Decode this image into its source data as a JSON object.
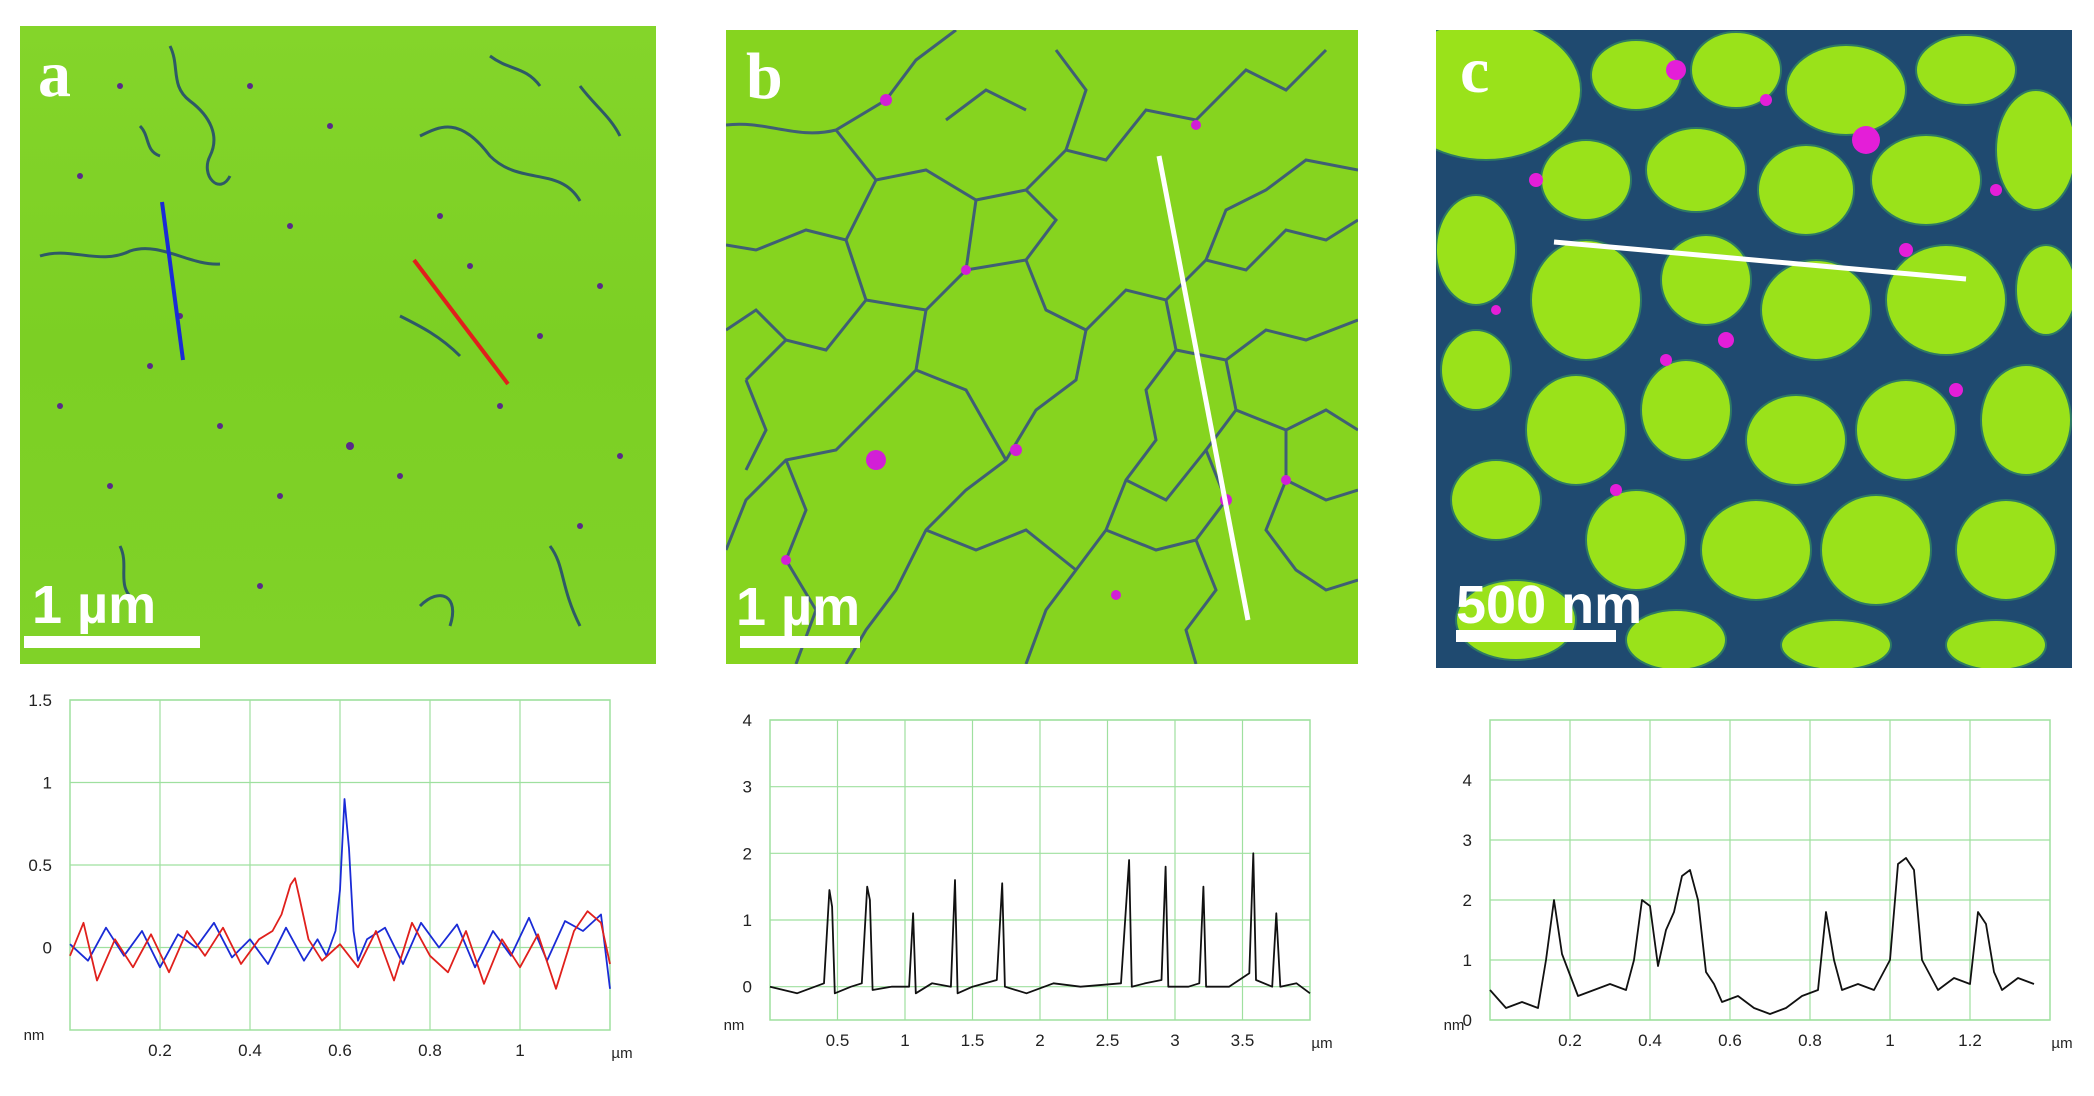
{
  "figure": {
    "panels": [
      {
        "letter": "a",
        "scale_label": "1 µm",
        "image_colors": {
          "base": "#7fd126",
          "fiber": "#2e5a66",
          "aggregate": "#b02bd0"
        },
        "line_colors": [
          "#1a2bd6",
          "#e0201c"
        ]
      },
      {
        "letter": "b",
        "scale_label": "1 µm",
        "image_colors": {
          "base": "#86d41f",
          "fiber": "#3f5f74",
          "aggregate": "#d21fd6"
        },
        "line_colors": [
          "#ffffff"
        ]
      },
      {
        "letter": "c",
        "scale_label": "500 nm",
        "image_colors": {
          "base": "#9ae21a",
          "fiber": "#1f4a70",
          "aggregate": "#e41ed8"
        },
        "line_colors": [
          "#ffffff"
        ]
      }
    ]
  },
  "chart_data": [
    {
      "type": "line",
      "panel": "a",
      "ylabel": "nm",
      "xlabel": "µm",
      "xlim": [
        0,
        1.2
      ],
      "ylim": [
        -0.5,
        1.5
      ],
      "xticks": [
        "0.2",
        "0.4",
        "0.6",
        "0.8",
        "1"
      ],
      "yticks": [
        "0",
        "0.5",
        "1",
        "1.5"
      ],
      "xtick_values": [
        0.2,
        0.4,
        0.6,
        0.8,
        1.0
      ],
      "ytick_values": [
        0,
        0.5,
        1,
        1.5
      ],
      "series": [
        {
          "name": "blue profile",
          "color": "#1a2bd6",
          "x": [
            0,
            0.04,
            0.08,
            0.12,
            0.16,
            0.2,
            0.24,
            0.28,
            0.32,
            0.36,
            0.4,
            0.44,
            0.48,
            0.52,
            0.55,
            0.57,
            0.59,
            0.6,
            0.61,
            0.62,
            0.63,
            0.64,
            0.66,
            0.7,
            0.74,
            0.78,
            0.82,
            0.86,
            0.9,
            0.94,
            0.98,
            1.02,
            1.06,
            1.1,
            1.14,
            1.18,
            1.2
          ],
          "y": [
            0.02,
            -0.08,
            0.12,
            -0.05,
            0.1,
            -0.12,
            0.08,
            0.0,
            0.15,
            -0.06,
            0.05,
            -0.1,
            0.12,
            -0.08,
            0.05,
            -0.05,
            0.1,
            0.35,
            0.9,
            0.6,
            0.1,
            -0.08,
            0.05,
            0.12,
            -0.1,
            0.15,
            0.0,
            0.14,
            -0.12,
            0.1,
            -0.05,
            0.18,
            -0.08,
            0.16,
            0.1,
            0.2,
            -0.25
          ]
        },
        {
          "name": "red profile",
          "color": "#e0201c",
          "x": [
            0,
            0.03,
            0.06,
            0.1,
            0.14,
            0.18,
            0.22,
            0.26,
            0.3,
            0.34,
            0.38,
            0.42,
            0.45,
            0.47,
            0.49,
            0.5,
            0.51,
            0.53,
            0.56,
            0.6,
            0.64,
            0.68,
            0.72,
            0.76,
            0.8,
            0.84,
            0.88,
            0.92,
            0.96,
            1.0,
            1.04,
            1.08,
            1.12,
            1.15,
            1.18,
            1.2
          ],
          "y": [
            -0.05,
            0.15,
            -0.2,
            0.05,
            -0.12,
            0.08,
            -0.15,
            0.1,
            -0.05,
            0.12,
            -0.1,
            0.05,
            0.1,
            0.2,
            0.38,
            0.42,
            0.3,
            0.05,
            -0.08,
            0.02,
            -0.12,
            0.1,
            -0.2,
            0.15,
            -0.05,
            -0.15,
            0.1,
            -0.22,
            0.05,
            -0.12,
            0.08,
            -0.25,
            0.1,
            0.22,
            0.15,
            -0.1
          ]
        }
      ]
    },
    {
      "type": "line",
      "panel": "b",
      "ylabel": "nm",
      "xlabel": "µm",
      "xlim": [
        0,
        4.0
      ],
      "ylim": [
        -0.5,
        4
      ],
      "xticks": [
        "0.5",
        "1",
        "1.5",
        "2",
        "2.5",
        "3",
        "3.5"
      ],
      "yticks": [
        "0",
        "1",
        "2",
        "3",
        "4"
      ],
      "xtick_values": [
        0.5,
        1,
        1.5,
        2,
        2.5,
        3,
        3.5
      ],
      "ytick_values": [
        0,
        1,
        2,
        3,
        4
      ],
      "series": [
        {
          "name": "profile",
          "color": "#111111",
          "x": [
            0,
            0.2,
            0.4,
            0.44,
            0.46,
            0.48,
            0.6,
            0.68,
            0.72,
            0.74,
            0.76,
            0.9,
            1.03,
            1.06,
            1.08,
            1.2,
            1.34,
            1.37,
            1.39,
            1.5,
            1.68,
            1.72,
            1.74,
            1.9,
            2.1,
            2.3,
            2.6,
            2.66,
            2.68,
            2.78,
            2.9,
            2.93,
            2.95,
            3.1,
            3.18,
            3.21,
            3.23,
            3.4,
            3.55,
            3.58,
            3.6,
            3.72,
            3.75,
            3.78,
            3.9,
            4.0
          ],
          "y": [
            0.0,
            -0.1,
            0.05,
            1.45,
            1.2,
            -0.1,
            0.0,
            0.05,
            1.5,
            1.3,
            -0.05,
            0.0,
            0.0,
            1.1,
            -0.1,
            0.05,
            0.0,
            1.6,
            -0.1,
            0.0,
            0.1,
            1.55,
            0.0,
            -0.1,
            0.05,
            0.0,
            0.05,
            1.9,
            0.0,
            0.05,
            0.1,
            1.8,
            0.0,
            0.0,
            0.05,
            1.5,
            0.0,
            0.0,
            0.2,
            2.0,
            0.1,
            0.0,
            1.1,
            0.0,
            0.05,
            -0.1
          ]
        }
      ]
    },
    {
      "type": "line",
      "panel": "c",
      "ylabel": "nm",
      "xlabel": "µm",
      "xlim": [
        0,
        1.4
      ],
      "ylim": [
        0,
        5
      ],
      "xticks": [
        "0.2",
        "0.4",
        "0.6",
        "0.8",
        "1",
        "1.2"
      ],
      "yticks": [
        "0",
        "1",
        "2",
        "3",
        "4"
      ],
      "xtick_values": [
        0.2,
        0.4,
        0.6,
        0.8,
        1.0,
        1.2
      ],
      "ytick_values": [
        0,
        1,
        2,
        3,
        4
      ],
      "series": [
        {
          "name": "profile",
          "color": "#111111",
          "x": [
            0.0,
            0.04,
            0.08,
            0.12,
            0.14,
            0.16,
            0.18,
            0.22,
            0.26,
            0.3,
            0.34,
            0.36,
            0.38,
            0.4,
            0.42,
            0.44,
            0.46,
            0.48,
            0.5,
            0.52,
            0.54,
            0.56,
            0.58,
            0.62,
            0.66,
            0.7,
            0.74,
            0.78,
            0.82,
            0.84,
            0.86,
            0.88,
            0.92,
            0.96,
            1.0,
            1.02,
            1.04,
            1.06,
            1.08,
            1.12,
            1.16,
            1.2,
            1.22,
            1.24,
            1.26,
            1.28,
            1.32,
            1.36
          ],
          "y": [
            0.5,
            0.2,
            0.3,
            0.2,
            1.0,
            2.0,
            1.1,
            0.4,
            0.5,
            0.6,
            0.5,
            1.0,
            2.0,
            1.9,
            0.9,
            1.5,
            1.8,
            2.4,
            2.5,
            2.0,
            0.8,
            0.6,
            0.3,
            0.4,
            0.2,
            0.1,
            0.2,
            0.4,
            0.5,
            1.8,
            1.0,
            0.5,
            0.6,
            0.5,
            1.0,
            2.6,
            2.7,
            2.5,
            1.0,
            0.5,
            0.7,
            0.6,
            1.8,
            1.6,
            0.8,
            0.5,
            0.7,
            0.6
          ]
        }
      ]
    }
  ]
}
